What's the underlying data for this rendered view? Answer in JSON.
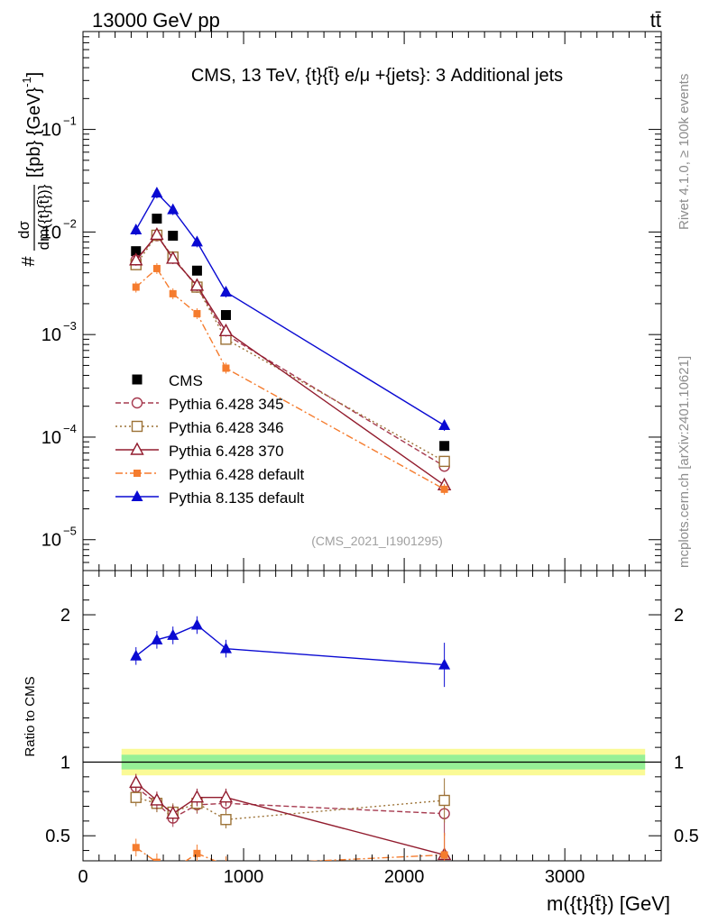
{
  "header": {
    "energy_label": "13000 GeV pp",
    "process_label": "tt̄"
  },
  "side_labels": {
    "rivet": "Rivet 4.1.0, ≥ 100k events",
    "source": "mcplots.cern.ch [arXiv:2401.10621]"
  },
  "chart_data": {
    "type": "line",
    "title": "CMS, 13 TeV, {t}{t̄} e/μ +{jets}: 3 Additional jets",
    "analysis_id": "(CMS_2021_I1901295)",
    "xlabel": "m({t}{t̄}) [GeV]",
    "ylabel": "#dσ/dm({t}{t̄})} [{pb} {GeV}⁻¹]",
    "ylabel_parts": {
      "prefix": "#",
      "numerator": "dσ",
      "denominator": "dm({t}{t̄})}",
      "units": "[{pb} {GeV}",
      "exponent": "-1",
      "close": "]"
    },
    "ratio_ylabel": "Ratio to CMS",
    "xlim": [
      0,
      3600
    ],
    "ylim": [
      5e-06,
      0.9
    ],
    "yscale": "log",
    "ratio_ylim": [
      0.33,
      2.3
    ],
    "x_ticks": [
      0,
      1000,
      2000,
      3000
    ],
    "x_tick_labels": [
      "0",
      "1000",
      "2000",
      "3000"
    ],
    "y_ticks": [
      1e-05,
      0.0001,
      0.001,
      0.01,
      0.1
    ],
    "y_tick_mantissa": [
      "10",
      "10",
      "10",
      "10",
      "10"
    ],
    "y_tick_exponents": [
      "−5",
      "−4",
      "−3",
      "−2",
      "−1"
    ],
    "ratio_ticks": [
      0.5,
      1,
      2
    ],
    "ratio_tick_labels": [
      "0.5",
      "1",
      "2"
    ],
    "x": [
      330,
      460,
      560,
      710,
      890,
      2250
    ],
    "series": [
      {
        "name": "CMS",
        "color": "#000000",
        "marker": "square",
        "dash": "",
        "values": [
          0.0065,
          0.0135,
          0.0092,
          0.0042,
          0.00155,
          8.2e-05
        ],
        "ratio": [
          1,
          1,
          1,
          1,
          1,
          1
        ]
      },
      {
        "name": "Pythia 6.428 345",
        "color": "#a63a4f",
        "marker": "circle-open",
        "dash": "6,3",
        "values": [
          0.0053,
          0.0092,
          0.0057,
          0.0029,
          0.001,
          5.2e-05
        ],
        "ratio": [
          0.83,
          0.72,
          0.62,
          0.71,
          0.72,
          0.65
        ]
      },
      {
        "name": "Pythia 6.428 346",
        "color": "#9c7236",
        "marker": "square-open",
        "dash": "2,3",
        "values": [
          0.0048,
          0.0093,
          0.0057,
          0.0029,
          0.0009,
          5.8e-05
        ],
        "ratio": [
          0.76,
          0.72,
          0.66,
          0.72,
          0.61,
          0.74
        ]
      },
      {
        "name": "Pythia 6.428 370",
        "color": "#921c2e",
        "marker": "triangle-open",
        "dash": "",
        "values": [
          0.0053,
          0.0094,
          0.0055,
          0.003,
          0.00108,
          3.4e-05
        ],
        "ratio": [
          0.86,
          0.74,
          0.65,
          0.76,
          0.76,
          0.37
        ]
      },
      {
        "name": "Pythia 6.428 default",
        "color": "#f57c2e",
        "marker": "square-small",
        "dash": "8,3,2,3",
        "values": [
          0.0029,
          0.0044,
          0.0025,
          0.0016,
          0.00047,
          3.1e-05
        ],
        "ratio": [
          0.42,
          0.32,
          0.27,
          0.38,
          0.3,
          0.37
        ]
      },
      {
        "name": "Pythia 8.135 default",
        "color": "#0a0ad2",
        "marker": "triangle",
        "dash": "",
        "values": [
          0.0105,
          0.024,
          0.0165,
          0.008,
          0.0026,
          0.00013
        ],
        "ratio": [
          1.72,
          1.83,
          1.86,
          1.93,
          1.77,
          1.66
        ]
      }
    ],
    "ratio_bands": {
      "inner": 0.05,
      "outer": 0.09
    }
  }
}
